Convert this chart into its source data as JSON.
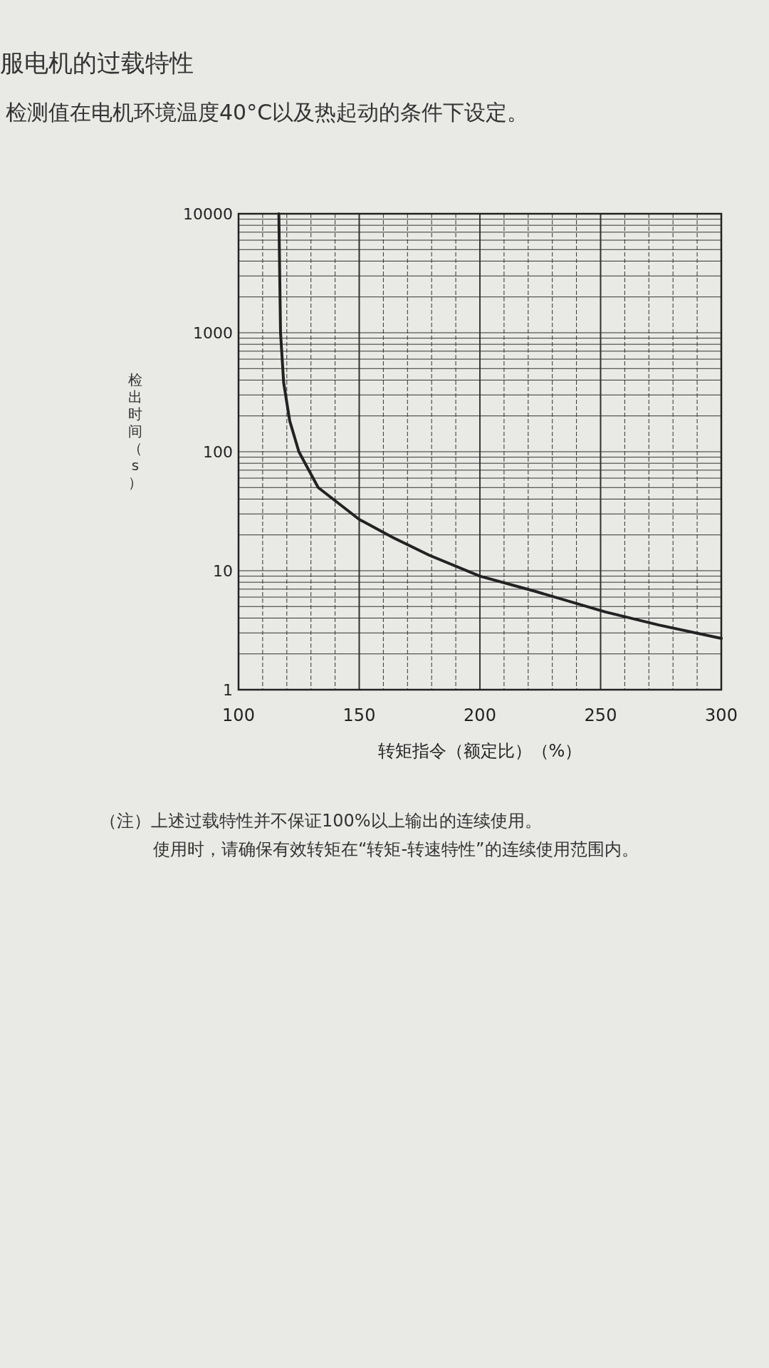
{
  "chart_data": {
    "type": "line",
    "title": "服电机的过载特性",
    "subtitle": "检测值在电机环境温度40°C以及热起动的条件下设定。",
    "xlabel": "转矩指令（额定比）（%）",
    "ylabel": "检出时间（s）",
    "x": [
      116.7,
      117.4,
      118.7,
      121.2,
      125,
      133,
      150,
      164,
      179,
      200,
      223,
      252,
      274,
      300
    ],
    "series": [
      {
        "color": "#222222",
        "values": [
          10000,
          1000,
          380,
          182,
          100,
          50,
          27,
          19,
          13.5,
          9,
          6.7,
          4.5,
          3.5,
          2.7
        ]
      }
    ],
    "xlim": [
      100,
      300
    ],
    "ylim": [
      1,
      10000
    ],
    "xticks": [
      100,
      150,
      200,
      250,
      300
    ],
    "yticks": [
      1,
      10,
      100,
      1000,
      10000
    ],
    "log": "y",
    "grid": true,
    "line_style": "solid",
    "marker": "none",
    "annotations": [
      "（注）上述过载特性并不保证100%以上输出的连续使用。",
      "使用时，请确保有效转矩在“转矩-转速特性”的连续使用范围内。"
    ]
  }
}
